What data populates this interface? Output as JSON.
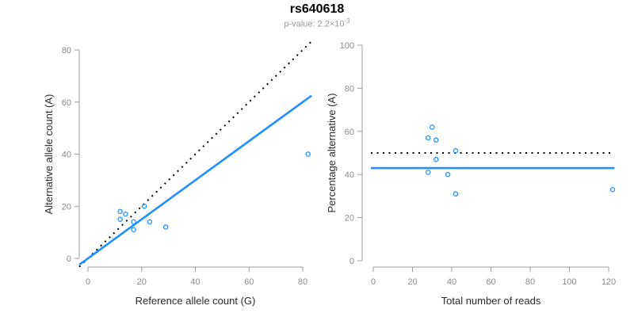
{
  "figure": {
    "title": "rs640618",
    "subtitle_prefix": "p-value: 2.2×10",
    "subtitle_exponent": "-3"
  },
  "colors": {
    "point": "#1E90FF",
    "fit_line": "#1E90FF",
    "reference_line": "#000000",
    "axis": "#9b9b9b",
    "tick_text": "#8c8c8c"
  },
  "chart_data": [
    {
      "type": "scatter",
      "name": "allele-counts-scatter",
      "xlabel": "Reference allele count (G)",
      "ylabel": "Alternative allele count (A)",
      "xlim": [
        0,
        80
      ],
      "ylim": [
        0,
        80
      ],
      "xticks": [
        0,
        20,
        40,
        60,
        80
      ],
      "yticks": [
        0,
        20,
        40,
        60,
        80
      ],
      "grid": false,
      "points": [
        [
          12,
          18
        ],
        [
          14,
          17
        ],
        [
          12,
          15
        ],
        [
          17,
          14
        ],
        [
          23,
          14
        ],
        [
          17,
          11
        ],
        [
          21,
          20
        ],
        [
          29,
          12
        ],
        [
          82,
          40
        ]
      ],
      "lines": [
        {
          "name": "identity-line",
          "style": "dotted",
          "color": "#000000",
          "slope": 1,
          "intercept": 0
        },
        {
          "name": "regression-line",
          "style": "solid",
          "color": "#1E90FF",
          "slope": 0.75,
          "intercept": 0
        }
      ]
    },
    {
      "type": "scatter",
      "name": "percentage-vs-reads-scatter",
      "xlabel": "Total number of reads",
      "ylabel": "Percentage alternative (A)",
      "xlim": [
        0,
        120
      ],
      "ylim": [
        0,
        100
      ],
      "xticks": [
        0,
        20,
        40,
        60,
        80,
        100,
        120
      ],
      "yticks": [
        0,
        20,
        40,
        60,
        80,
        100
      ],
      "grid": false,
      "points": [
        [
          30,
          62
        ],
        [
          28,
          57
        ],
        [
          32,
          56
        ],
        [
          42,
          51
        ],
        [
          32,
          47
        ],
        [
          28,
          41
        ],
        [
          38,
          40
        ],
        [
          42,
          31
        ],
        [
          122,
          33
        ]
      ],
      "lines": [
        {
          "name": "expected-50-percent-line",
          "style": "dotted",
          "color": "#000000",
          "y": 50,
          "xspan": [
            -1.2,
            121.7
          ]
        },
        {
          "name": "fitted-percentage-line",
          "style": "solid",
          "color": "#1E90FF",
          "y": 43,
          "xspan": [
            -1.2,
            123
          ]
        }
      ]
    }
  ]
}
